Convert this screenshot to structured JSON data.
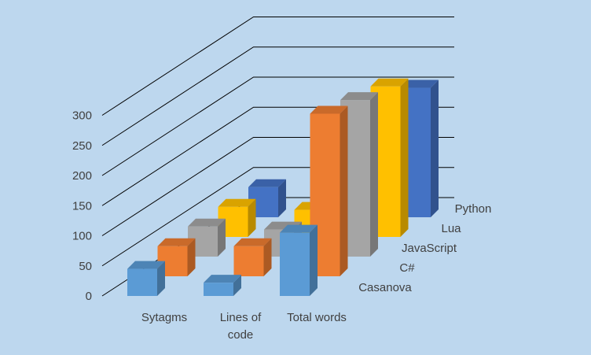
{
  "chart_data": {
    "type": "bar",
    "subtype": "3d-column",
    "categories": [
      "Sytagms",
      "Lines of code",
      "Total words"
    ],
    "category_lines": [
      [
        "Sytagms"
      ],
      [
        "Lines of",
        "code"
      ],
      [
        "Total words"
      ]
    ],
    "series": [
      {
        "name": "Casanova",
        "values": [
          45,
          22,
          105
        ],
        "color": "#5b9bd5"
      },
      {
        "name": "C#",
        "values": [
          50,
          50,
          270
        ],
        "color": "#ed7d31"
      },
      {
        "name": "JavaScript",
        "values": [
          50,
          45,
          260
        ],
        "color": "#a5a5a5"
      },
      {
        "name": "Lua",
        "values": [
          50,
          45,
          250
        ],
        "color": "#ffc000"
      },
      {
        "name": "Python",
        "values": [
          50,
          45,
          215
        ],
        "color": "#4472c4"
      }
    ],
    "yticks": [
      "0",
      "50",
      "100",
      "150",
      "200",
      "250",
      "300"
    ],
    "ylim": [
      0,
      300
    ],
    "grid": true,
    "title": "",
    "xlabel": "",
    "ylabel": "",
    "background": "#bdd7ee"
  }
}
